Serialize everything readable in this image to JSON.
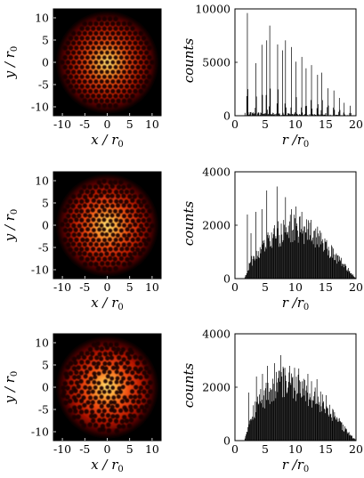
{
  "chart_data": [
    {
      "type": "heatmap",
      "row": 1,
      "xlabel": "x / r",
      "xlabel_sub": "0",
      "ylabel": "y / r",
      "ylabel_sub": "0",
      "xlim": [
        -12,
        12
      ],
      "ylim": [
        -12,
        12
      ],
      "xticks": [
        "-10",
        "-5",
        "0",
        "5",
        "10"
      ],
      "yticks": [
        "10",
        "5",
        "0",
        "-5",
        "-10"
      ],
      "colormap": [
        "#000000",
        "#3a0000",
        "#b01000",
        "#f04a10",
        "#ffa93a",
        "#ffe37a"
      ],
      "cluster_radius": 10.7,
      "lattice_spacing": 1.25,
      "disorder": 0.0,
      "vacancies": 0.0
    },
    {
      "type": "bar",
      "row": 1,
      "xlabel": "r  /r",
      "xlabel_sub": "0",
      "ylabel": "counts",
      "xlim": [
        0,
        20
      ],
      "ylim": [
        0,
        10000
      ],
      "xticks": [
        "0",
        "5",
        "10",
        "15",
        "20"
      ],
      "yticks": [
        "10000",
        "5000",
        "0"
      ],
      "peaks": [
        {
          "r": 2.0,
          "count": 9600
        },
        {
          "r": 3.4,
          "count": 4900
        },
        {
          "r": 4.4,
          "count": 6600
        },
        {
          "r": 5.2,
          "count": 6800
        },
        {
          "r": 5.7,
          "count": 8400
        },
        {
          "r": 7.0,
          "count": 6500
        },
        {
          "r": 7.8,
          "count": 5900
        },
        {
          "r": 8.3,
          "count": 6900
        },
        {
          "r": 9.3,
          "count": 6200
        },
        {
          "r": 10.0,
          "count": 4900
        },
        {
          "r": 11.0,
          "count": 5400
        },
        {
          "r": 11.7,
          "count": 4300
        },
        {
          "r": 12.6,
          "count": 4600
        },
        {
          "r": 13.6,
          "count": 3700
        },
        {
          "r": 14.3,
          "count": 3900
        },
        {
          "r": 15.3,
          "count": 2500
        },
        {
          "r": 16.3,
          "count": 2300
        },
        {
          "r": 17.2,
          "count": 1600
        },
        {
          "r": 18.0,
          "count": 1200
        },
        {
          "r": 19.0,
          "count": 900
        }
      ]
    },
    {
      "type": "heatmap",
      "row": 2,
      "xlabel": "x / r",
      "xlabel_sub": "0",
      "ylabel": "y / r",
      "ylabel_sub": "0",
      "xlim": [
        -12,
        12
      ],
      "ylim": [
        -12,
        12
      ],
      "xticks": [
        "-10",
        "-5",
        "0",
        "5",
        "10"
      ],
      "yticks": [
        "10",
        "5",
        "0",
        "-5",
        "-10"
      ],
      "cluster_radius": 10.7,
      "lattice_spacing": 1.25,
      "disorder": 0.12,
      "vacancies": 0.0
    },
    {
      "type": "bar",
      "row": 2,
      "xlabel": "r  /r",
      "xlabel_sub": "0",
      "ylabel": "counts",
      "xlim": [
        0,
        20
      ],
      "ylim": [
        0,
        4000
      ],
      "xticks": [
        "0",
        "5",
        "10",
        "15",
        "20"
      ],
      "yticks": [
        "4000",
        "2000",
        "0"
      ],
      "envelope": [
        {
          "r": 1.5,
          "count": 0
        },
        {
          "r": 2.5,
          "count": 600
        },
        {
          "r": 4,
          "count": 1000
        },
        {
          "r": 6,
          "count": 1500
        },
        {
          "r": 8,
          "count": 1800
        },
        {
          "r": 10,
          "count": 1900
        },
        {
          "r": 12,
          "count": 1750
        },
        {
          "r": 14,
          "count": 1450
        },
        {
          "r": 16,
          "count": 1000
        },
        {
          "r": 18,
          "count": 500
        },
        {
          "r": 19.5,
          "count": 100
        },
        {
          "r": 20,
          "count": 0
        }
      ],
      "peaks": [
        {
          "r": 2.0,
          "count": 2400
        },
        {
          "r": 2.6,
          "count": 1700
        },
        {
          "r": 3.4,
          "count": 2500
        },
        {
          "r": 4.4,
          "count": 2600
        },
        {
          "r": 5.2,
          "count": 3300
        },
        {
          "r": 6.9,
          "count": 3450
        },
        {
          "r": 8.3,
          "count": 3050
        },
        {
          "r": 9.3,
          "count": 2600
        },
        {
          "r": 10.0,
          "count": 2700
        },
        {
          "r": 11.0,
          "count": 2500
        },
        {
          "r": 12.5,
          "count": 2200
        },
        {
          "r": 14.0,
          "count": 1800
        }
      ]
    },
    {
      "type": "heatmap",
      "row": 3,
      "xlabel": "x / r",
      "xlabel_sub": "0",
      "ylabel": "y / r",
      "ylabel_sub": "0",
      "xlim": [
        -12,
        12
      ],
      "ylim": [
        -12,
        12
      ],
      "xticks": [
        "-10",
        "-5",
        "0",
        "5",
        "10"
      ],
      "yticks": [
        "10",
        "5",
        "0",
        "-5",
        "-10"
      ],
      "cluster_radius": 10.7,
      "lattice_spacing": 1.25,
      "disorder": 0.22,
      "vacancies": 0.08
    },
    {
      "type": "bar",
      "row": 3,
      "xlabel": "r  /r",
      "xlabel_sub": "0",
      "ylabel": "counts",
      "xlim": [
        0,
        20
      ],
      "ylim": [
        0,
        4000
      ],
      "xticks": [
        "0",
        "5",
        "10",
        "15",
        "20"
      ],
      "yticks": [
        "4000",
        "2000",
        "0"
      ],
      "envelope": [
        {
          "r": 1.5,
          "count": 0
        },
        {
          "r": 2.5,
          "count": 900
        },
        {
          "r": 4,
          "count": 1500
        },
        {
          "r": 6,
          "count": 1950
        },
        {
          "r": 8,
          "count": 2150
        },
        {
          "r": 10,
          "count": 2100
        },
        {
          "r": 12,
          "count": 1850
        },
        {
          "r": 14,
          "count": 1450
        },
        {
          "r": 16,
          "count": 950
        },
        {
          "r": 18,
          "count": 450
        },
        {
          "r": 19.5,
          "count": 100
        },
        {
          "r": 20,
          "count": 0
        }
      ],
      "peaks": [
        {
          "r": 2.2,
          "count": 1800
        },
        {
          "r": 3.5,
          "count": 2400
        },
        {
          "r": 4.5,
          "count": 2500
        },
        {
          "r": 5.3,
          "count": 2800
        },
        {
          "r": 6.5,
          "count": 2900
        },
        {
          "r": 7.5,
          "count": 3200
        },
        {
          "r": 9.0,
          "count": 2800
        },
        {
          "r": 10.5,
          "count": 2700
        },
        {
          "r": 12.0,
          "count": 2500
        },
        {
          "r": 13.5,
          "count": 2300
        },
        {
          "r": 15.0,
          "count": 1700
        }
      ]
    }
  ]
}
